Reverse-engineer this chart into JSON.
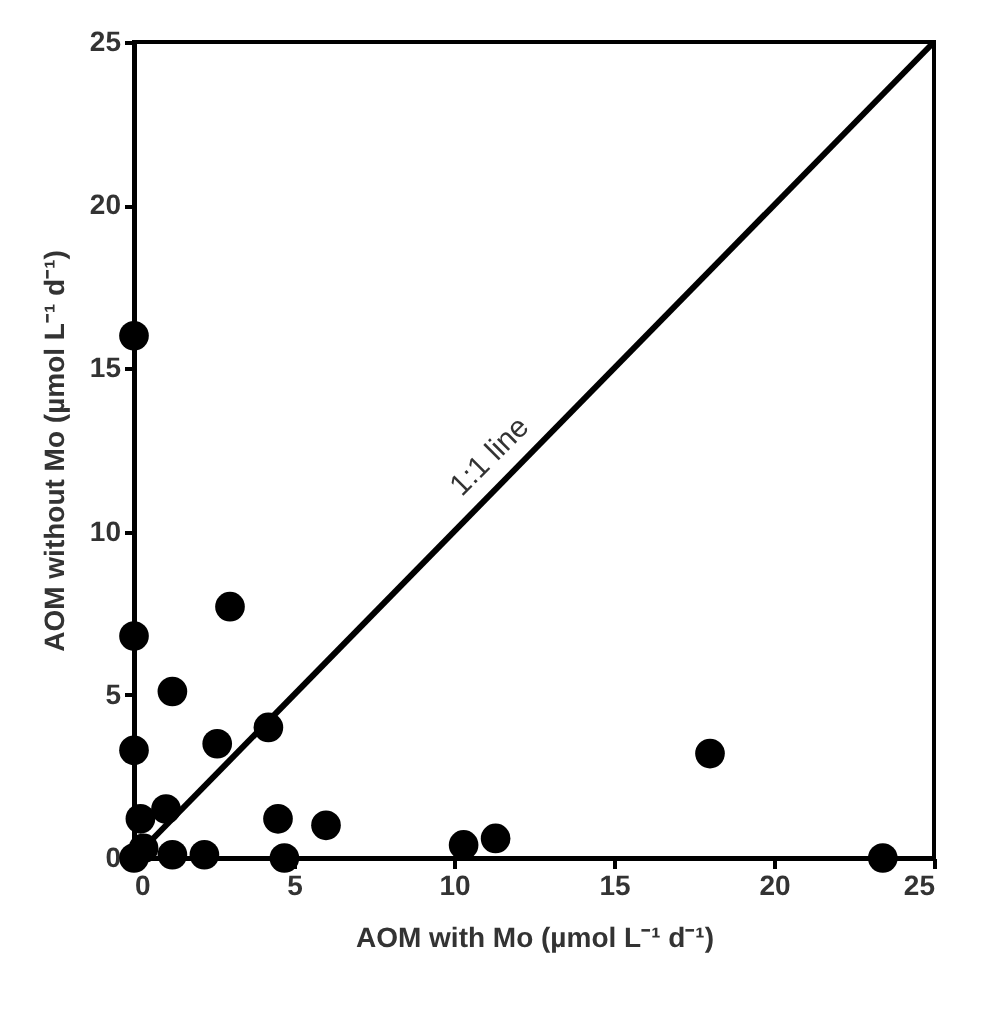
{
  "chart_data": {
    "type": "scatter",
    "xlabel": "AOM with Mo (µmol L⁻¹ d⁻¹)",
    "ylabel": "AOM without Mo (µmol L⁻¹ d⁻¹)",
    "xlim": [
      0,
      25
    ],
    "ylim": [
      0,
      25
    ],
    "xticks": [
      0,
      5,
      10,
      15,
      20,
      25
    ],
    "yticks": [
      0,
      5,
      10,
      15,
      20,
      25
    ],
    "grid": false,
    "series": [
      {
        "marker": "circle",
        "color": "#000000",
        "x": [
          0,
          0,
          0,
          0.2,
          0,
          0.3,
          1.2,
          3.0,
          1.0,
          2.6,
          4.2,
          4.5,
          6.0,
          1.2,
          2.2,
          4.7,
          10.3,
          11.3,
          18.0,
          23.4
        ],
        "values": [
          16.0,
          6.8,
          3.3,
          1.2,
          0,
          0.3,
          5.1,
          7.7,
          1.5,
          3.5,
          4.0,
          1.2,
          1.0,
          0.1,
          0.1,
          0,
          0.4,
          0.6,
          3.2,
          0
        ]
      },
      {
        "type": "line",
        "marker": "none",
        "color": "#000000",
        "x": [
          0,
          25
        ],
        "values": [
          0,
          25
        ]
      }
    ],
    "annotations": [
      {
        "text": "1:1 line",
        "x": 11.8,
        "y": 11.8
      }
    ]
  }
}
